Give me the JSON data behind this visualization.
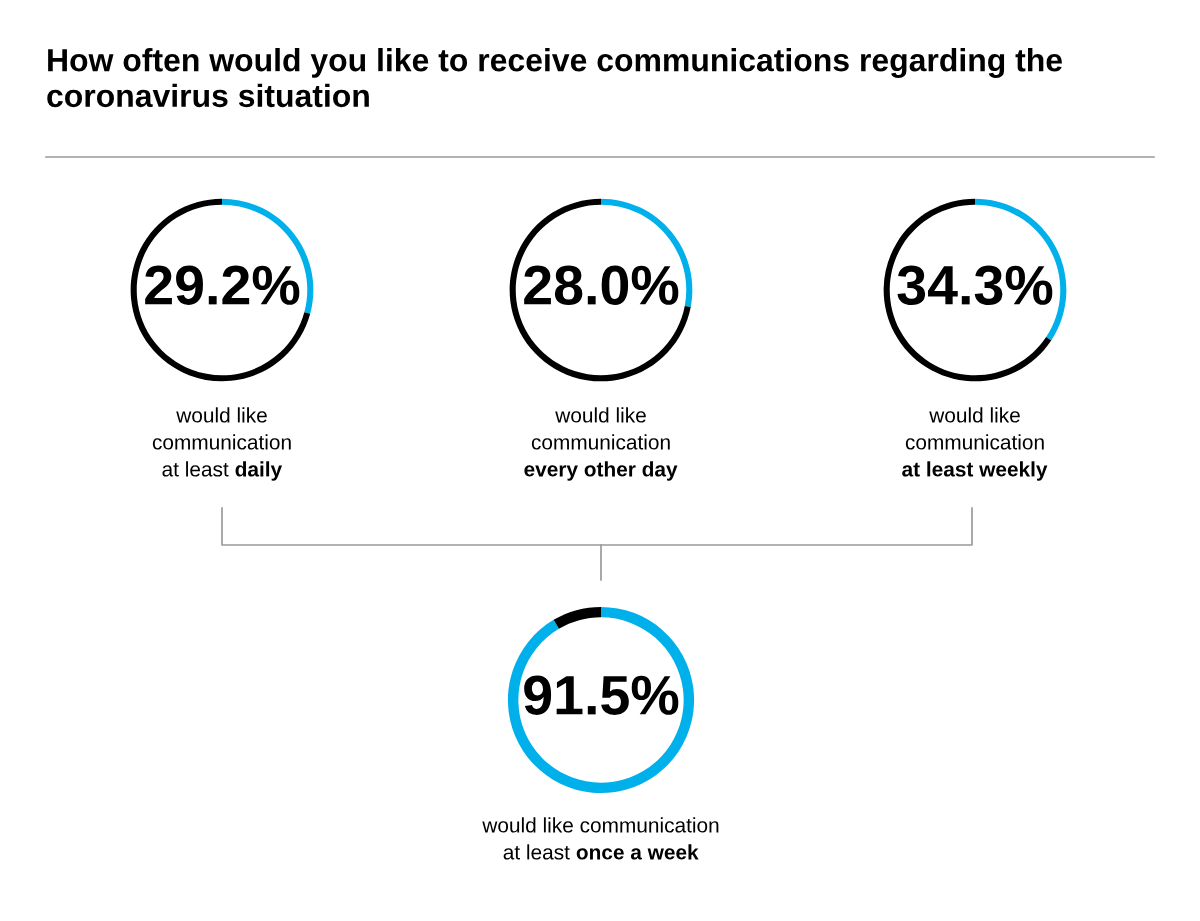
{
  "chart_data": [
    {
      "type": "donut",
      "title": "How often would you like to receive communications regarding the coronavirus situation",
      "categories": [
        null,
        null
      ],
      "values": [
        29.2,
        70.8
      ],
      "colors": [
        "#00b0eb",
        "#000000"
      ],
      "value_labels": [
        "29.2%",
        null
      ],
      "annotations": [
        "would like\ncommunication\nat least ",
        "daily"
      ]
    },
    {
      "type": "donut",
      "categories": [
        null,
        null
      ],
      "values": [
        28.0,
        72.0
      ],
      "colors": [
        "#00b0eb",
        "#000000"
      ],
      "value_labels": [
        "28.0%",
        null
      ],
      "annotations": [
        "would like\ncommunication\n",
        "every other day"
      ]
    },
    {
      "type": "donut",
      "categories": [
        null,
        null
      ],
      "values": [
        34.3,
        65.7
      ],
      "colors": [
        "#00b0eb",
        "#000000"
      ],
      "value_labels": [
        "34.3%",
        null
      ],
      "annotations": [
        "would like\ncommunication\n",
        "at least weekly"
      ]
    },
    {
      "type": "donut",
      "categories": [
        null,
        null
      ],
      "values": [
        91.5,
        8.5
      ],
      "colors": [
        "#00b0eb",
        "#000000"
      ],
      "value_labels": [
        "91.5%",
        null
      ],
      "annotations": [
        "would like communication\nat least ",
        "once a week"
      ]
    }
  ]
}
